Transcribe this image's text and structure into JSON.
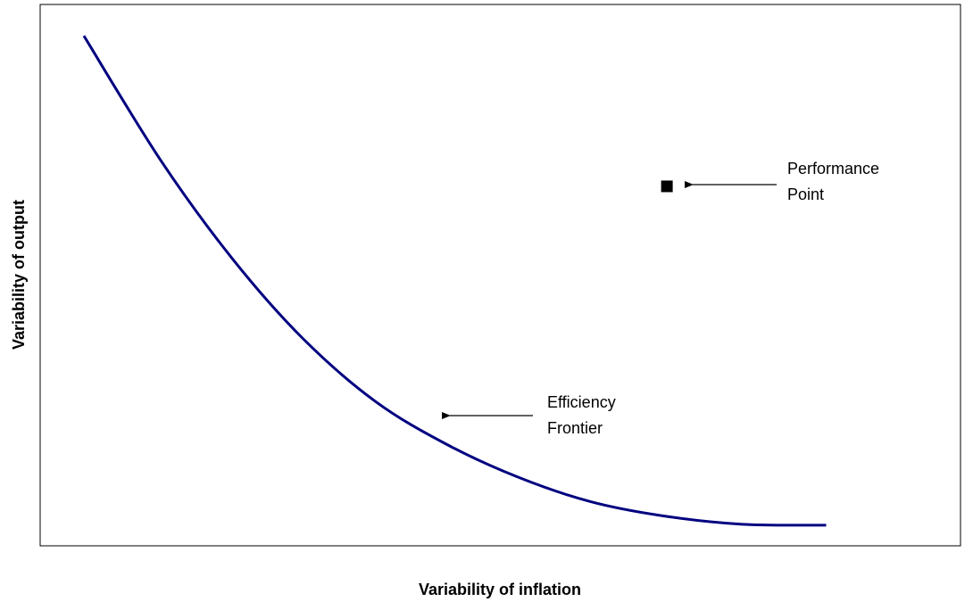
{
  "chart_data": {
    "type": "line",
    "xlabel": "Variability of inflation",
    "ylabel": "Variability of output",
    "xlim": [
      0,
      100
    ],
    "ylim": [
      0,
      100
    ],
    "x": [
      4.75,
      13.1,
      20.9,
      28.6,
      36.4,
      44.1,
      51.9,
      59.7,
      67.4,
      76.1,
      85.4
    ],
    "series": [
      {
        "color": "#000080",
        "values": [
          94.2,
          71.2,
          53.0,
          38.2,
          26.7,
          18.8,
          12.7,
          8.2,
          5.6,
          4.0,
          3.8
        ]
      }
    ],
    "points": [
      {
        "x": 68.1,
        "y": 66.4,
        "color": "#000000"
      }
    ],
    "annotations": [
      {
        "text": [
          "Performance",
          "Point"
        ]
      },
      {
        "text": [
          "Efficiency",
          "Frontier"
        ]
      }
    ]
  }
}
